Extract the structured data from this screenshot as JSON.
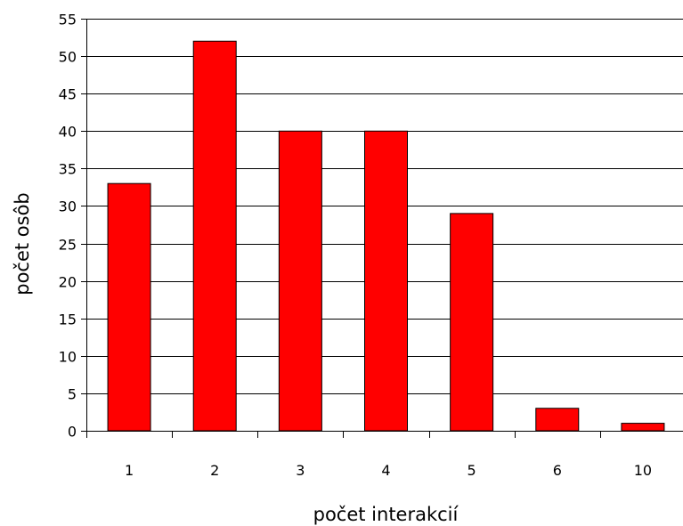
{
  "chart_data": {
    "type": "bar",
    "categories": [
      "1",
      "2",
      "3",
      "4",
      "5",
      "6",
      "10"
    ],
    "values": [
      33,
      52,
      40,
      40,
      29,
      3,
      1
    ],
    "xlabel": "počet interakcií",
    "ylabel": "počet osôb",
    "ylim": [
      0,
      55
    ],
    "yticks": [
      0,
      5,
      10,
      15,
      20,
      25,
      30,
      35,
      40,
      45,
      50,
      55
    ],
    "grid": true,
    "bar_color": "#ff0000",
    "bar_border_color": "#000000",
    "grid_color": "#000000"
  }
}
